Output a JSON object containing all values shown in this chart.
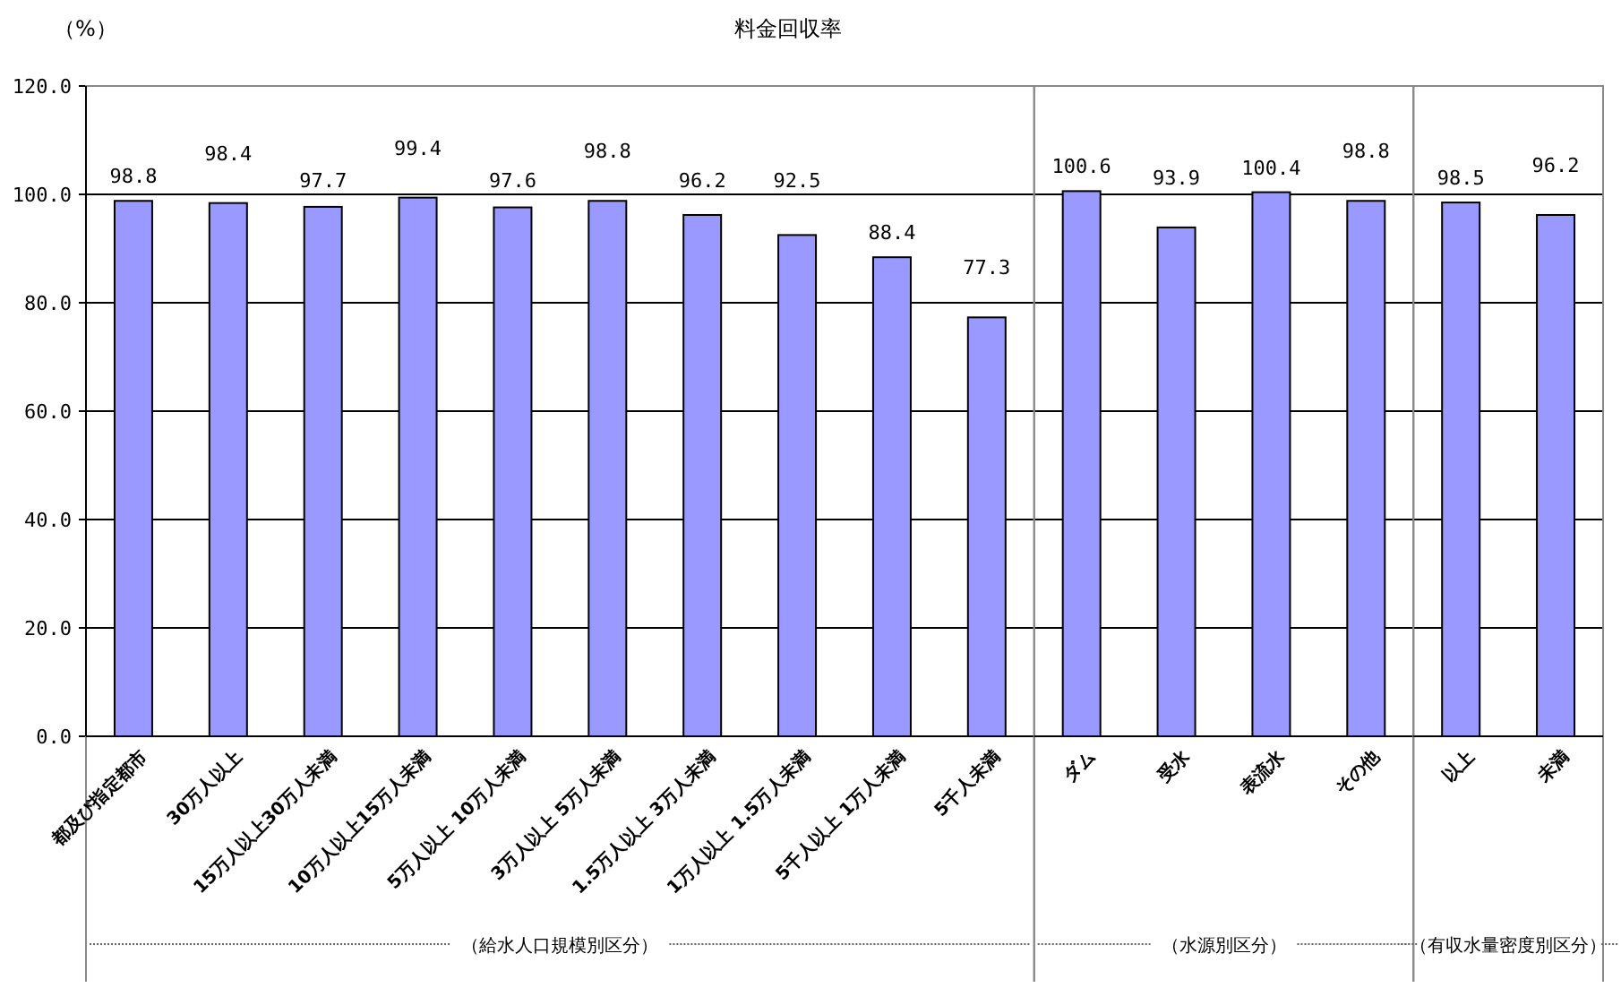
{
  "chart_data": [
    {
      "type": "bar",
      "title": "料金回収率",
      "ylabel": "（%）",
      "xlabel": "（給水人口規模別区分）",
      "categories": [
        "都及び指定都市",
        "30万人以上",
        "15万人以上30万人未満",
        "10万人以上15万人未満",
        "5万人以上 10万人未満",
        "3万人以上 5万人未満",
        "1.5万人以上 3万人未満",
        "1万人以上 1.5万人未満",
        "5千人以上 1万人未満",
        "5千人未満"
      ],
      "values": [
        98.8,
        98.4,
        97.7,
        99.4,
        97.6,
        98.8,
        96.2,
        92.5,
        88.4,
        77.3
      ],
      "color": "#9999ff",
      "ylim": [
        0,
        120
      ],
      "yticks": [
        {
          "value": 0,
          "label": "0.0"
        },
        {
          "value": 20,
          "label": "20.0"
        },
        {
          "value": 40,
          "label": "40.0"
        },
        {
          "value": 60,
          "label": "60.0"
        },
        {
          "value": 80,
          "label": "80.0"
        },
        {
          "value": 100,
          "label": "100.0"
        },
        {
          "value": 120,
          "label": "120.0"
        }
      ],
      "grid": "y",
      "data_labels": true
    },
    {
      "type": "bar",
      "xlabel": "（水源別区分）",
      "categories": [
        "ダム",
        "受水",
        "表流水",
        "その他"
      ],
      "values": [
        100.6,
        93.9,
        100.4,
        98.8
      ],
      "color": "#9999ff",
      "ylim": [
        0,
        120
      ],
      "yticks": [
        0,
        20,
        40,
        60,
        80,
        100,
        120
      ],
      "grid": "y",
      "data_labels": true,
      "tick_labels": "x"
    },
    {
      "type": "bar",
      "xlabel": "（有収水量密度別区分）",
      "categories": [
        "以上",
        "未満"
      ],
      "values": [
        98.5,
        96.2
      ],
      "color": "#9999ff",
      "ylim": [
        0,
        120
      ],
      "yticks": [
        0,
        20,
        40,
        60,
        80,
        100,
        120
      ],
      "grid": "y",
      "data_labels": true,
      "tick_labels": "x"
    }
  ]
}
